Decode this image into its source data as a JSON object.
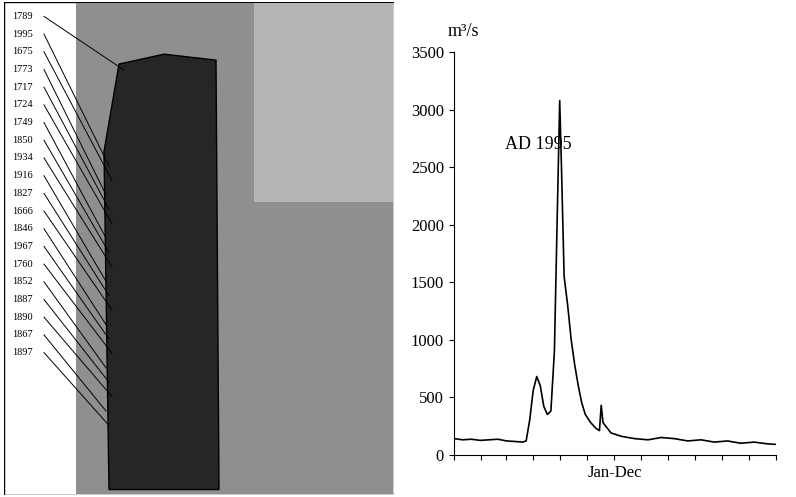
{
  "flood_marks": [
    "1789",
    "1995",
    "1675",
    "1773",
    "1717",
    "1724",
    "1749",
    "1850",
    "1934",
    "1916",
    "1827",
    "1666",
    "1846",
    "1967",
    "1760",
    "1852",
    "1887",
    "1890",
    "1867",
    "1897"
  ],
  "chart_data": {
    "type": "line",
    "y_label": "m³/s",
    "x_label": "Jan-Dec",
    "annotation": "AD 1995",
    "color": "#000000",
    "tick_labels": "y",
    "x": [
      1,
      10,
      20,
      30,
      40,
      50,
      60,
      70,
      78,
      82,
      86,
      90,
      94,
      98,
      102,
      106,
      110,
      114,
      117,
      120,
      122,
      125,
      129,
      133,
      137,
      141,
      145,
      149,
      155,
      161,
      165,
      167,
      169,
      172,
      178,
      190,
      205,
      220,
      235,
      250,
      265,
      280,
      295,
      310,
      325,
      340,
      355,
      365
    ],
    "values": [
      140,
      130,
      135,
      125,
      130,
      135,
      120,
      115,
      110,
      120,
      300,
      560,
      680,
      600,
      420,
      350,
      380,
      900,
      2000,
      3080,
      2500,
      1550,
      1300,
      1000,
      780,
      600,
      450,
      350,
      280,
      230,
      210,
      430,
      280,
      250,
      190,
      160,
      140,
      130,
      150,
      140,
      120,
      130,
      110,
      120,
      100,
      110,
      95,
      90
    ],
    "xlim": [
      0,
      365
    ],
    "xticks": [
      0,
      31,
      59,
      90,
      120,
      151,
      181,
      212,
      243,
      273,
      304,
      334,
      365
    ],
    "ylim": [
      0,
      3500
    ],
    "yticks": [
      0,
      500,
      1000,
      1500,
      2000,
      2500,
      3000,
      3500
    ]
  }
}
